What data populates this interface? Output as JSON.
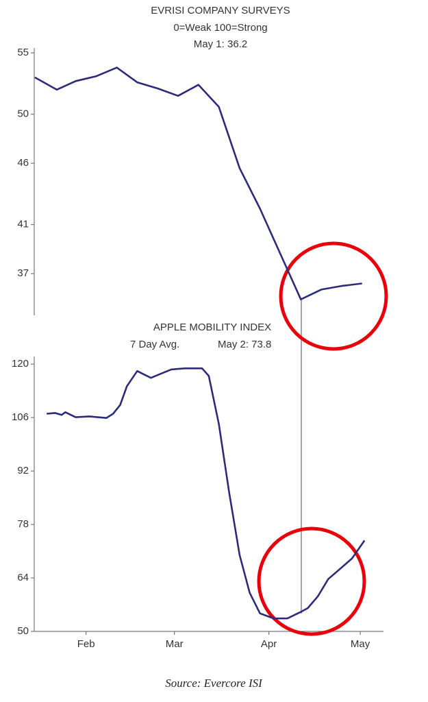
{
  "chart_data": [
    {
      "type": "line",
      "title": "EVRISI COMPANY SURVEYS",
      "subtitle": "0=Weak  100=Strong",
      "annotation": "May 1: 36.2",
      "x": [
        14.2,
        21.4,
        27.6,
        34.4,
        41.1,
        47.8,
        54.5,
        61.2,
        67.9,
        74.6,
        81.4,
        88.1,
        94.8,
        101.5,
        108.2,
        114.9,
        121.6
      ],
      "values": [
        53.0,
        52.0,
        52.7,
        53.1,
        53.8,
        52.6,
        52.1,
        51.5,
        52.4,
        50.6,
        45.6,
        42.3,
        38.6,
        34.9,
        35.7,
        36.0,
        36.2
      ],
      "color": "#2b2b7a",
      "xlim": [
        14,
        132
      ],
      "ylim": [
        33.6,
        55.4
      ],
      "yticks": [
        55,
        50,
        46,
        41,
        37
      ]
    },
    {
      "type": "line",
      "title": "APPLE MOBILITY INDEX",
      "subtitle": "7 Day Avg.",
      "annotation": "May 2: 73.8",
      "x": [
        18.1,
        20.8,
        23.0,
        24.2,
        27.6,
        32.1,
        37.7,
        39.9,
        42.2,
        44.4,
        47.8,
        50.0,
        52.3,
        55.6,
        59.0,
        63.5,
        69.1,
        71.3,
        74.6,
        78.0,
        81.4,
        84.7,
        88.1,
        92.6,
        97.1,
        101.5,
        103.8,
        107.1,
        110.5,
        115.0,
        118.3,
        122.4
      ],
      "values": [
        107.0,
        107.2,
        106.7,
        107.4,
        106.1,
        106.3,
        105.9,
        107.0,
        109.3,
        114.2,
        118.2,
        117.3,
        116.4,
        117.5,
        118.6,
        118.9,
        118.9,
        116.9,
        104.3,
        86.3,
        70.0,
        60.1,
        54.7,
        53.4,
        53.4,
        55.1,
        56.1,
        59.2,
        63.7,
        66.8,
        69.1,
        73.8
      ],
      "color": "#2b2b7a",
      "xlim": [
        14,
        132
      ],
      "ylim": [
        50,
        122
      ],
      "yticks": [
        120,
        106,
        92,
        78,
        64,
        50
      ],
      "xticks": [
        {
          "value": 31,
          "label": "Feb"
        },
        {
          "value": 60,
          "label": "Mar"
        },
        {
          "value": 91,
          "label": "Apr"
        },
        {
          "value": 121,
          "label": "May"
        }
      ]
    }
  ],
  "source": "Source: Evercore ISI"
}
